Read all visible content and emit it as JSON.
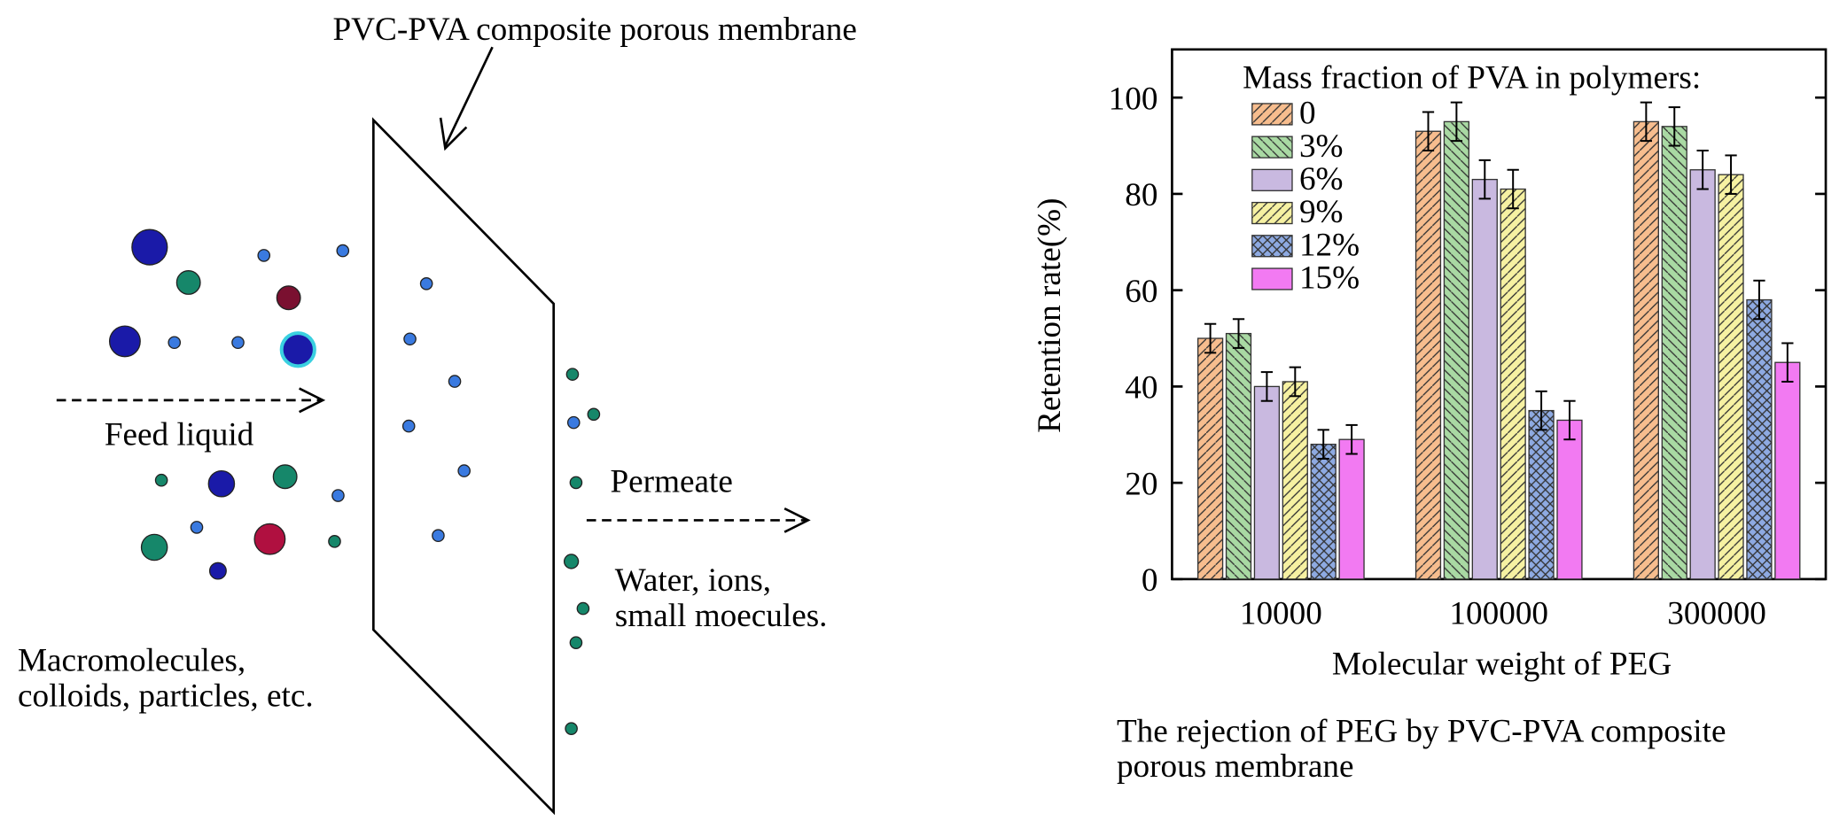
{
  "diagram": {
    "membrane_label": "PVC-PVA composite porous membrane",
    "feed_label": "Feed liquid",
    "permeate_label": "Permeate",
    "permeate_note": [
      "Water, ions,",
      "small moecules."
    ],
    "retained_note": [
      "Macromolecules,",
      "colloids, particles, etc."
    ]
  },
  "chart_data": {
    "type": "bar",
    "ylabel": "Retention rate(%)",
    "xlabel": "Molecular weight of PEG",
    "caption": [
      "The rejection of PEG by PVC-PVA composite",
      "porous membrane"
    ],
    "legend_title": "Mass fraction of PVA in polymers:",
    "legend": "upper-left",
    "categories": [
      "10000",
      "100000",
      "300000"
    ],
    "ylim": [
      0,
      110
    ],
    "yticks": [
      0,
      20,
      40,
      60,
      80,
      100
    ],
    "grid": false,
    "series": [
      {
        "name": "0",
        "color": "#f7bd8e",
        "hatch": "diagonal",
        "values": [
          50,
          93,
          95
        ],
        "errors": [
          3,
          4,
          4
        ]
      },
      {
        "name": "3%",
        "color": "#a9d9a3",
        "hatch": "backdiagonal",
        "values": [
          51,
          95,
          94
        ],
        "errors": [
          3,
          4,
          4
        ]
      },
      {
        "name": "6%",
        "color": "#c9b9e0",
        "hatch": "none",
        "values": [
          40,
          83,
          85
        ],
        "errors": [
          3,
          4,
          4
        ]
      },
      {
        "name": "9%",
        "color": "#f6f1a2",
        "hatch": "diagonal",
        "values": [
          41,
          81,
          84
        ],
        "errors": [
          3,
          4,
          4
        ]
      },
      {
        "name": "12%",
        "color": "#8eaae2",
        "hatch": "cross",
        "values": [
          28,
          35,
          58
        ],
        "errors": [
          3,
          4,
          4
        ]
      },
      {
        "name": "15%",
        "color": "#f27af2",
        "hatch": "none",
        "values": [
          29,
          33,
          45
        ],
        "errors": [
          3,
          4,
          4
        ]
      }
    ]
  }
}
